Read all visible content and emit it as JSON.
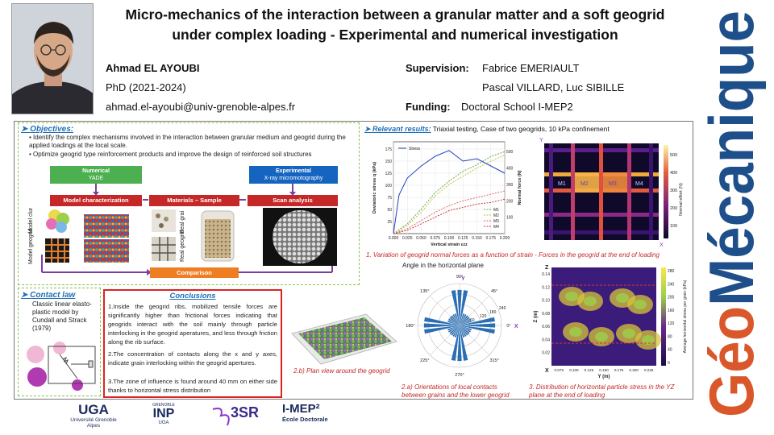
{
  "title": "Micro-mechanics of the interaction between a granular matter and a soft geogrid under complex loading - Experimental and numerical investigation",
  "author": {
    "name": "Ahmad EL AYOUBI",
    "position": "PhD (2021-2024)",
    "email": "ahmad.el-ayoubi@univ-grenoble-alpes.fr"
  },
  "supervision": {
    "label": "Supervision:",
    "line1": "Fabrice EMERIAULT",
    "line2": "Pascal VILLARD, Luc SIBILLE"
  },
  "funding": {
    "label": "Funding:",
    "value": "Doctoral School I-MEP2"
  },
  "vertical_brand": "GéoMécanique",
  "objectives": {
    "title": "Objectives:",
    "bullets": [
      "Identify the complex mechanisms involved in the interaction between granular medium and geogrid during the applied loadings at the local scale.",
      "Optimize geogrid type reinforcement products and improve the design of reinforced soil structures"
    ],
    "numerical_label": "Numerical",
    "numerical_sub": "YADE",
    "experimental_label": "Experimental",
    "experimental_sub": "X-ray micromotography",
    "bar_model": "Model characterization",
    "bar_materials": "Materials – Sample",
    "bar_scan": "Scan analysis",
    "bar_comparison": "Comparison",
    "side_clumps": "Model clumps",
    "side_geogrid": "Model geogrid",
    "side_real_grains": "Real grains",
    "side_real_geogrid": "Real geogrid"
  },
  "results": {
    "title": "Relevant results:",
    "subtitle": "Triaxial testing, Case of two geogrids, 10 kPa confinement",
    "caption1": "1. Variation of geogrid normal forces as a function of strain - Forces in the geogrid at the end of loading",
    "caption2a": "2.a) Orientations of local contacts between grains and the lower geogrid",
    "caption2b": "2.b) Plan view around the geogrid",
    "caption3": "3. Distribution of horizontal particle stress in the YZ plane at the end of loading",
    "polar_title": "Angle in the horizontal plane",
    "grid_labels": [
      "M1",
      "M2",
      "M3",
      "M4"
    ],
    "colorbar1_label": "Normal effort (N)",
    "colorbar1_ticks": [
      "500",
      "400",
      "300",
      "200",
      "100"
    ],
    "colorbar3_label": "Average horizontal stress per grain (kPa)",
    "colorbar3_ticks": [
      "280",
      "240",
      "200",
      "160",
      "120",
      "80",
      "40",
      "0"
    ],
    "axis_y": "Y",
    "axis_x": "X",
    "axis_z": "Z"
  },
  "contact_law": {
    "title": "Contact law",
    "text": "Classic linear elasto-plastic model by Cundall and Strack (1979)"
  },
  "conclusions": {
    "title": "Conclusions",
    "items": [
      "1.Inside the geogrid ribs, mobilized tensile forces are significantly higher than frictional forces indicating that geogrids interact with the soil mainly through particle interlocking in the geogrid aperatures, and less through friction along the rib surface.",
      "2.The concentration of contacts along the x and y axes, indicate grain interlocking within the geogrid apertures.",
      "3.The zone of influence is found around 40 mm on either side thanks to horizontal stress distribution"
    ]
  },
  "logos": {
    "uga": "UGA",
    "uga_sub": "Université Grenoble Alpes",
    "inp_top": "GRENOBLE",
    "inp": "INP",
    "inp_sub": "UGA",
    "tsr": "3SR",
    "imep": "I-MEP²",
    "imep_sub": "École Doctorale"
  },
  "chart_data": [
    {
      "type": "line",
      "title": "",
      "xlabel": "Vertical strain εzz",
      "ylabel": "Deviatoric stress q (kPa)",
      "y2label": "Normal force (N)",
      "xlim": [
        0,
        0.2
      ],
      "ylim": [
        0,
        190
      ],
      "y2lim": [
        0,
        560
      ],
      "x_ticks": [
        "0.000",
        "0.025",
        "0.050",
        "0.075",
        "0.100",
        "0.125",
        "0.150",
        "0.175",
        "0.200"
      ],
      "y_ticks": [
        "25",
        "50",
        "75",
        "100",
        "125",
        "150",
        "175"
      ],
      "y2_ticks": [
        "100",
        "200",
        "300",
        "400",
        "500"
      ],
      "legend": "top-left / bottom-right",
      "series": [
        {
          "name": "Stress",
          "axis": "left",
          "color": "#1f3fbf",
          "x": [
            0,
            0.01,
            0.025,
            0.05,
            0.075,
            0.1,
            0.125,
            0.15,
            0.175,
            0.2
          ],
          "y": [
            0,
            80,
            115,
            140,
            160,
            172,
            150,
            155,
            140,
            125
          ]
        },
        {
          "name": "M1",
          "axis": "right",
          "color": "#6aa84f",
          "x": [
            0,
            0.025,
            0.05,
            0.075,
            0.1,
            0.125,
            0.15,
            0.175,
            0.2
          ],
          "y": [
            0,
            60,
            150,
            250,
            320,
            380,
            420,
            470,
            500
          ]
        },
        {
          "name": "M2",
          "axis": "right",
          "color": "#b7c93a",
          "x": [
            0,
            0.025,
            0.05,
            0.075,
            0.1,
            0.125,
            0.15,
            0.175,
            0.2
          ],
          "y": [
            0,
            50,
            130,
            230,
            300,
            350,
            400,
            440,
            480
          ]
        },
        {
          "name": "M3",
          "axis": "right",
          "color": "#e06666",
          "x": [
            0,
            0.025,
            0.05,
            0.075,
            0.1,
            0.125,
            0.15,
            0.175,
            0.2
          ],
          "y": [
            0,
            30,
            80,
            130,
            170,
            200,
            220,
            240,
            260
          ]
        },
        {
          "name": "M4",
          "axis": "right",
          "color": "#cc3333",
          "x": [
            0,
            0.025,
            0.05,
            0.075,
            0.1,
            0.125,
            0.15,
            0.175,
            0.2
          ],
          "y": [
            0,
            20,
            60,
            100,
            140,
            160,
            180,
            190,
            210
          ]
        }
      ]
    },
    {
      "type": "polar",
      "title": "Angle in the horizontal plane",
      "angle_ticks": [
        "0°",
        "45°",
        "90°",
        "135°",
        "180°",
        "225°",
        "270°",
        "315°"
      ],
      "radial_ticks": [
        "60",
        "120",
        "180",
        "240"
      ]
    },
    {
      "type": "heatmap",
      "xlabel": "Y (m)",
      "ylabel": "Z (m)",
      "x_ticks": [
        "0.075",
        "0.100",
        "0.125",
        "0.150",
        "0.175",
        "0.200",
        "0.225"
      ],
      "y_ticks": [
        "0.02",
        "0.04",
        "0.06",
        "0.08",
        "0.10",
        "0.12",
        "0.14"
      ]
    }
  ]
}
